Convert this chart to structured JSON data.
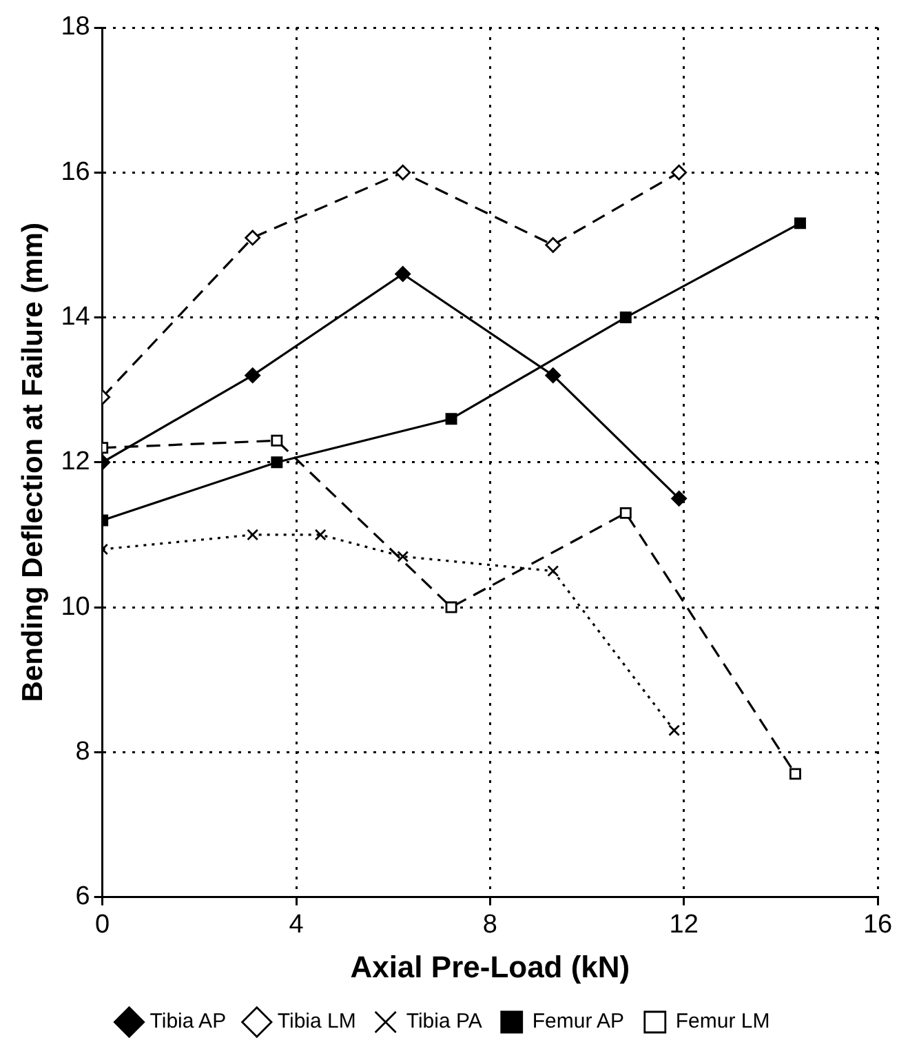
{
  "chart_data": {
    "type": "line",
    "xlabel": "Axial Pre-Load (kN)",
    "ylabel": "Bending Deflection at Failure (mm)",
    "xlim": [
      0,
      16
    ],
    "xticks": [
      0,
      4,
      8,
      12,
      16
    ],
    "ylim": [
      6,
      18
    ],
    "yticks": [
      6,
      8,
      10,
      12,
      14,
      16,
      18
    ],
    "grid": true,
    "legend": "bottom",
    "series": [
      {
        "name": "Tibia AP",
        "color": "#000000",
        "marker": "diamond",
        "line_style": "solid",
        "x": [
          0,
          3.1,
          6.2,
          9.3,
          11.9
        ],
        "values": [
          12.0,
          13.2,
          14.6,
          13.2,
          11.5
        ]
      },
      {
        "name": "Tibia LM",
        "color": "#000000",
        "marker": "diamond",
        "line_style": "dashed",
        "x": [
          0,
          3.1,
          6.2,
          9.3,
          11.9
        ],
        "values": [
          12.9,
          15.1,
          16.0,
          15.0,
          16.0
        ]
      },
      {
        "name": "Tibia PA",
        "color": "#000000",
        "marker": "cross",
        "line_style": "dotted",
        "x": [
          0,
          3.1,
          4.5,
          6.2,
          9.3,
          11.8
        ],
        "values": [
          10.8,
          11.0,
          11.0,
          10.7,
          10.5,
          8.3
        ]
      },
      {
        "name": "Femur AP",
        "color": "#000000",
        "marker": "square",
        "line_style": "solid",
        "x": [
          0,
          3.6,
          7.2,
          10.8,
          14.4
        ],
        "values": [
          11.2,
          12.0,
          12.6,
          14.0,
          15.3
        ]
      },
      {
        "name": "Femur LM",
        "color": "#000000",
        "marker": "square",
        "line_style": "dashed",
        "x": [
          0,
          3.6,
          7.2,
          10.8,
          14.3
        ],
        "values": [
          12.2,
          12.3,
          10.0,
          11.3,
          7.7
        ]
      }
    ]
  }
}
